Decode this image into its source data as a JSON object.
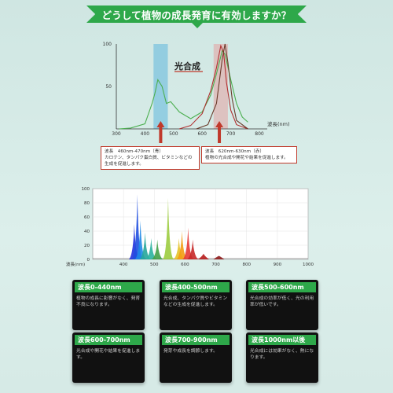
{
  "banner": {
    "title": "どうして植物の成長発育に有効しますか？"
  },
  "chart_data": [
    {
      "type": "line",
      "title": "",
      "xlabel": "波長(nm)",
      "ylabel": "",
      "xlim": [
        300,
        800
      ],
      "ylim": [
        0,
        100
      ],
      "x_ticks": [
        "300",
        "400",
        "500",
        "600",
        "700",
        "800"
      ],
      "y_ticks": [
        "50",
        "100"
      ],
      "annotation": "光合成",
      "highlight_bands": [
        {
          "name": "青",
          "from": 430,
          "to": 480,
          "color": "#5fb7dd"
        },
        {
          "name": "赤",
          "from": 640,
          "to": 690,
          "color": "#e4a0a0"
        }
      ],
      "series": [
        {
          "color": "#4caf50",
          "x": [
            310,
            350,
            400,
            425,
            435,
            445,
            460,
            475,
            490,
            520,
            560,
            600,
            630,
            650,
            670,
            680,
            700,
            720,
            740,
            760
          ],
          "values": [
            0,
            1,
            6,
            30,
            42,
            58,
            50,
            30,
            32,
            20,
            12,
            20,
            40,
            65,
            92,
            88,
            58,
            30,
            14,
            8
          ]
        },
        {
          "color": "#b03030",
          "x": [
            520,
            560,
            600,
            630,
            650,
            665,
            675,
            685,
            700,
            720,
            760
          ],
          "values": [
            0,
            4,
            18,
            45,
            72,
            98,
            90,
            55,
            22,
            5,
            0
          ]
        },
        {
          "color": "#6a3a2a",
          "x": [
            580,
            620,
            650,
            670,
            680,
            690,
            705,
            720,
            760
          ],
          "values": [
            0,
            5,
            30,
            82,
            100,
            78,
            35,
            10,
            0
          ]
        }
      ],
      "callouts": [
        {
          "line1": "波長　460nm-470nm（青）",
          "line2": "カロテン、タンパク蛋白質、ビタミンなどの",
          "line3": "生成を促進します。"
        },
        {
          "line1": "波長　620nm-630nm（赤）",
          "line2": "植物の光合成や開花や結果を促進します。",
          "line3": ""
        }
      ],
      "arrow_color": "#c0392b"
    },
    {
      "type": "line",
      "title": "",
      "xlabel": "波長(nm)",
      "ylabel": "",
      "xlim": [
        300,
        1000
      ],
      "ylim": [
        0,
        100
      ],
      "x_ticks": [
        "400",
        "500",
        "600",
        "700",
        "800",
        "900",
        "1000"
      ],
      "y_ticks": [
        "0",
        "20",
        "40",
        "60",
        "80",
        "100"
      ],
      "peaks": [
        {
          "x": 435,
          "value": 50,
          "color": "#2233dd"
        },
        {
          "x": 445,
          "value": 92,
          "color": "#1f4fe0"
        },
        {
          "x": 455,
          "value": 55,
          "color": "#1e88e5"
        },
        {
          "x": 470,
          "value": 38,
          "color": "#26a69a"
        },
        {
          "x": 490,
          "value": 30,
          "color": "#2bb3a0"
        },
        {
          "x": 510,
          "value": 28,
          "color": "#43a047"
        },
        {
          "x": 545,
          "value": 87,
          "color": "#9ccc3f"
        },
        {
          "x": 580,
          "value": 30,
          "color": "#e6c229"
        },
        {
          "x": 590,
          "value": 40,
          "color": "#f39c12"
        },
        {
          "x": 610,
          "value": 45,
          "color": "#e53935"
        },
        {
          "x": 625,
          "value": 28,
          "color": "#c62828"
        },
        {
          "x": 660,
          "value": 8,
          "color": "#b71c1c"
        },
        {
          "x": 710,
          "value": 5,
          "color": "#8e1b1b"
        }
      ]
    }
  ],
  "cards": [
    {
      "title": "波長0-440nm",
      "text": "植物の成長に影響がなく、発育不良になります。"
    },
    {
      "title": "波長400-500nm",
      "text": "光合成、タンパク質やビタミンなどの生成を促進します。"
    },
    {
      "title": "波長500-600nm",
      "text": "光合成の効率が低く、光の利用率が低いです。"
    },
    {
      "title": "波長600-700nm",
      "text": "光合成や開花や結果を促進します。"
    },
    {
      "title": "波長700-900nm",
      "text": "発芽や成長を調節します。"
    },
    {
      "title": "波長1000nm以後",
      "text": "光合成には効果がなく、熱になります。"
    }
  ]
}
